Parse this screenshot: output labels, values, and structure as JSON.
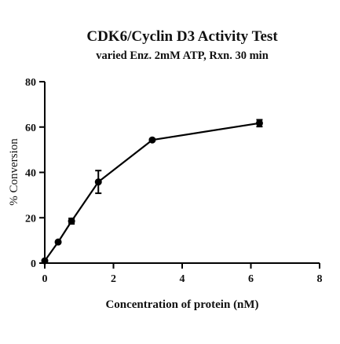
{
  "chart_data": {
    "type": "line",
    "title": "CDK6/Cyclin D3 Activity Test",
    "subtitle": "varied Enz. 2mM ATP, Rxn. 30 min",
    "xlabel": "Concentration of protein (nM)",
    "ylabel": "% Conversion",
    "xlim": [
      0,
      8
    ],
    "ylim": [
      0,
      80
    ],
    "xticks": [
      0,
      2,
      4,
      6,
      8
    ],
    "yticks": [
      0,
      20,
      40,
      60,
      80
    ],
    "grid": false,
    "series": [
      {
        "x": [
          0,
          0.39,
          0.78,
          1.56,
          3.13,
          6.25
        ],
        "y": [
          1,
          9.3,
          18.5,
          35.8,
          54.3,
          61.7
        ],
        "error": [
          0,
          0,
          1.2,
          5.0,
          0.4,
          1.5
        ],
        "color": "#000000",
        "marker": "circle"
      }
    ]
  }
}
